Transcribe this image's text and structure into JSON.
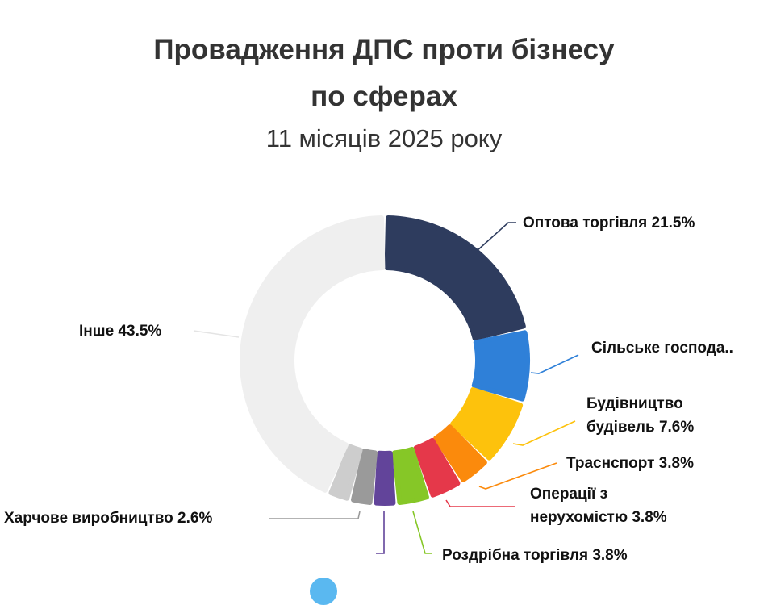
{
  "chart_data": {
    "type": "pie",
    "title": "Провадження ДПС проти бізнесу по сферах",
    "title_lines": [
      "Провадження ДПС проти бізнесу",
      "по сферах"
    ],
    "subtitle": "11 місяців 2025 року",
    "slices": [
      {
        "name": "Оптова торгівля",
        "value": 21.5,
        "label": "Оптова торгівля 21.5%",
        "color": "#2e3c5e"
      },
      {
        "name": "Сільське господарство",
        "value": 8.2,
        "label": "Сільське господа..",
        "color": "#2f80d8"
      },
      {
        "name": "Будівництво будівель",
        "value": 7.6,
        "label_lines": [
          "Будівництво",
          "будівель 7.6%"
        ],
        "color": "#fdc20c"
      },
      {
        "name": "Траснспорт",
        "value": 3.8,
        "label": "Траснспорт 3.8%",
        "color": "#fb8a0c"
      },
      {
        "name": "Операції з нерухомістю",
        "value": 3.8,
        "label_lines": [
          "Операції з",
          "нерухомістю 3.8%"
        ],
        "color": "#e5384a"
      },
      {
        "name": "Роздрібна торгівля",
        "value": 3.8,
        "label": "Роздрібна торгівля 3.8%",
        "color": "#86c727"
      },
      {
        "name": "",
        "value": 2.6,
        "color": "#62449a"
      },
      {
        "name": "Харчове виробництво",
        "value": 2.6,
        "label": "Харчове виробництво 2.6%",
        "color": "#9a9a9a"
      },
      {
        "name": "",
        "value": 2.6,
        "color": "#cdcdcd"
      },
      {
        "name": "Інше",
        "value": 43.5,
        "label": "Інше 43.5%",
        "color": "#efefef"
      }
    ]
  }
}
